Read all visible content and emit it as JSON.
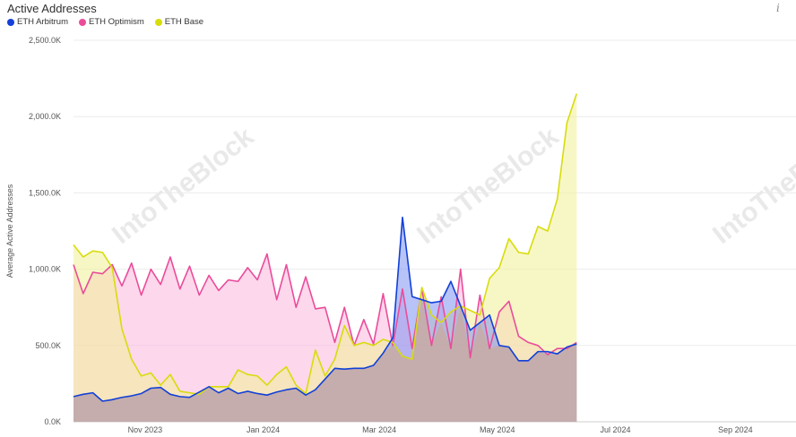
{
  "header": {
    "title": "Active Addresses",
    "info_icon": "i"
  },
  "watermark": "IntoTheBlock",
  "colors": {
    "arbitrum": "#1240d8",
    "optimism": "#ea4c9a",
    "base": "#d8dc0c",
    "arbitrum_fill": "#7e92f2",
    "optimism_fill": "#fbb6dc",
    "base_fill": "#f0f098",
    "overlap_fill": "#c9a99c",
    "grid": "#ececec"
  },
  "chart_data": {
    "type": "area",
    "title": "Active Addresses",
    "ylabel": "Average Active Addresses",
    "xlabel": "",
    "ylim": [
      0,
      2500000
    ],
    "yticks": [
      0,
      500000,
      1000000,
      1500000,
      2000000,
      2500000
    ],
    "ytick_labels": [
      "0.0K",
      "500.0K",
      "1,000.0K",
      "1,500.0K",
      "2,000.0K",
      "2,500.0K"
    ],
    "xlim": [
      "2023-09-25",
      "2024-09-24"
    ],
    "xticks": [
      {
        "date": "2023-11-01",
        "label": "Nov 2023"
      },
      {
        "date": "2024-01-01",
        "label": "Jan 2024"
      },
      {
        "date": "2024-03-01",
        "label": "Mar 2024"
      },
      {
        "date": "2024-05-01",
        "label": "May 2024"
      },
      {
        "date": "2024-07-01",
        "label": "Jul 2024"
      },
      {
        "date": "2024-09-01",
        "label": "Sep 2024"
      }
    ],
    "grid": true,
    "legend_position": "top-left",
    "series": [
      {
        "name": "ETH Arbitrum",
        "key": "arbitrum",
        "points": [
          [
            "2023-09-25",
            165000
          ],
          [
            "2023-09-30",
            180000
          ],
          [
            "2023-10-05",
            190000
          ],
          [
            "2023-10-10",
            135000
          ],
          [
            "2023-10-15",
            145000
          ],
          [
            "2023-10-20",
            160000
          ],
          [
            "2023-10-25",
            170000
          ],
          [
            "2023-10-30",
            185000
          ],
          [
            "2023-11-04",
            220000
          ],
          [
            "2023-11-09",
            225000
          ],
          [
            "2023-11-14",
            180000
          ],
          [
            "2023-11-19",
            165000
          ],
          [
            "2023-11-24",
            160000
          ],
          [
            "2023-11-29",
            195000
          ],
          [
            "2023-12-04",
            230000
          ],
          [
            "2023-12-09",
            190000
          ],
          [
            "2023-12-14",
            220000
          ],
          [
            "2023-12-19",
            185000
          ],
          [
            "2023-12-24",
            200000
          ],
          [
            "2023-12-29",
            185000
          ],
          [
            "2024-01-03",
            175000
          ],
          [
            "2024-01-08",
            195000
          ],
          [
            "2024-01-13",
            210000
          ],
          [
            "2024-01-18",
            220000
          ],
          [
            "2024-01-23",
            175000
          ],
          [
            "2024-01-28",
            210000
          ],
          [
            "2024-02-02",
            280000
          ],
          [
            "2024-02-07",
            350000
          ],
          [
            "2024-02-12",
            345000
          ],
          [
            "2024-02-17",
            350000
          ],
          [
            "2024-02-22",
            350000
          ],
          [
            "2024-02-27",
            370000
          ],
          [
            "2024-03-03",
            450000
          ],
          [
            "2024-03-08",
            550000
          ],
          [
            "2024-03-13",
            1340000
          ],
          [
            "2024-03-18",
            820000
          ],
          [
            "2024-03-23",
            800000
          ],
          [
            "2024-03-28",
            780000
          ],
          [
            "2024-04-02",
            790000
          ],
          [
            "2024-04-07",
            920000
          ],
          [
            "2024-04-12",
            760000
          ],
          [
            "2024-04-17",
            600000
          ],
          [
            "2024-04-22",
            650000
          ],
          [
            "2024-04-27",
            700000
          ],
          [
            "2024-05-02",
            500000
          ],
          [
            "2024-05-07",
            490000
          ],
          [
            "2024-05-12",
            400000
          ],
          [
            "2024-05-17",
            400000
          ],
          [
            "2024-05-22",
            460000
          ],
          [
            "2024-05-27",
            460000
          ],
          [
            "2024-06-01",
            445000
          ],
          [
            "2024-06-06",
            490000
          ],
          [
            "2024-06-11",
            510000
          ]
        ]
      },
      {
        "name": "ETH Optimism",
        "key": "optimism",
        "points": [
          [
            "2023-09-25",
            1030000
          ],
          [
            "2023-09-30",
            840000
          ],
          [
            "2023-10-05",
            980000
          ],
          [
            "2023-10-10",
            970000
          ],
          [
            "2023-10-15",
            1030000
          ],
          [
            "2023-10-20",
            890000
          ],
          [
            "2023-10-25",
            1040000
          ],
          [
            "2023-10-30",
            830000
          ],
          [
            "2023-11-04",
            1000000
          ],
          [
            "2023-11-09",
            900000
          ],
          [
            "2023-11-14",
            1080000
          ],
          [
            "2023-11-19",
            870000
          ],
          [
            "2023-11-24",
            1020000
          ],
          [
            "2023-11-29",
            830000
          ],
          [
            "2023-12-04",
            960000
          ],
          [
            "2023-12-09",
            860000
          ],
          [
            "2023-12-14",
            930000
          ],
          [
            "2023-12-19",
            920000
          ],
          [
            "2023-12-24",
            1010000
          ],
          [
            "2023-12-29",
            930000
          ],
          [
            "2024-01-03",
            1100000
          ],
          [
            "2024-01-08",
            800000
          ],
          [
            "2024-01-13",
            1030000
          ],
          [
            "2024-01-18",
            750000
          ],
          [
            "2024-01-23",
            950000
          ],
          [
            "2024-01-28",
            740000
          ],
          [
            "2024-02-02",
            750000
          ],
          [
            "2024-02-07",
            520000
          ],
          [
            "2024-02-12",
            750000
          ],
          [
            "2024-02-17",
            500000
          ],
          [
            "2024-02-22",
            670000
          ],
          [
            "2024-02-27",
            510000
          ],
          [
            "2024-03-03",
            840000
          ],
          [
            "2024-03-08",
            500000
          ],
          [
            "2024-03-13",
            870000
          ],
          [
            "2024-03-18",
            480000
          ],
          [
            "2024-03-23",
            870000
          ],
          [
            "2024-03-28",
            500000
          ],
          [
            "2024-04-02",
            820000
          ],
          [
            "2024-04-07",
            480000
          ],
          [
            "2024-04-12",
            1000000
          ],
          [
            "2024-04-17",
            420000
          ],
          [
            "2024-04-22",
            830000
          ],
          [
            "2024-04-27",
            480000
          ],
          [
            "2024-05-02",
            720000
          ],
          [
            "2024-05-07",
            790000
          ],
          [
            "2024-05-12",
            560000
          ],
          [
            "2024-05-17",
            520000
          ],
          [
            "2024-05-22",
            500000
          ],
          [
            "2024-05-27",
            440000
          ],
          [
            "2024-06-01",
            480000
          ],
          [
            "2024-06-06",
            480000
          ],
          [
            "2024-06-11",
            520000
          ]
        ]
      },
      {
        "name": "ETH Base",
        "key": "base",
        "points": [
          [
            "2023-09-25",
            1160000
          ],
          [
            "2023-09-30",
            1080000
          ],
          [
            "2023-10-05",
            1120000
          ],
          [
            "2023-10-10",
            1110000
          ],
          [
            "2023-10-15",
            1010000
          ],
          [
            "2023-10-20",
            610000
          ],
          [
            "2023-10-25",
            410000
          ],
          [
            "2023-10-30",
            300000
          ],
          [
            "2023-11-04",
            320000
          ],
          [
            "2023-11-09",
            240000
          ],
          [
            "2023-11-14",
            310000
          ],
          [
            "2023-11-19",
            200000
          ],
          [
            "2023-11-24",
            190000
          ],
          [
            "2023-11-29",
            180000
          ],
          [
            "2023-12-04",
            230000
          ],
          [
            "2023-12-09",
            230000
          ],
          [
            "2023-12-14",
            230000
          ],
          [
            "2023-12-19",
            340000
          ],
          [
            "2023-12-24",
            310000
          ],
          [
            "2023-12-29",
            300000
          ],
          [
            "2024-01-03",
            240000
          ],
          [
            "2024-01-08",
            310000
          ],
          [
            "2024-01-13",
            360000
          ],
          [
            "2024-01-18",
            240000
          ],
          [
            "2024-01-23",
            185000
          ],
          [
            "2024-01-28",
            470000
          ],
          [
            "2024-02-02",
            300000
          ],
          [
            "2024-02-07",
            410000
          ],
          [
            "2024-02-12",
            630000
          ],
          [
            "2024-02-17",
            500000
          ],
          [
            "2024-02-22",
            520000
          ],
          [
            "2024-02-27",
            500000
          ],
          [
            "2024-03-03",
            540000
          ],
          [
            "2024-03-08",
            520000
          ],
          [
            "2024-03-13",
            430000
          ],
          [
            "2024-03-18",
            410000
          ],
          [
            "2024-03-23",
            880000
          ],
          [
            "2024-03-28",
            700000
          ],
          [
            "2024-04-02",
            650000
          ],
          [
            "2024-04-07",
            720000
          ],
          [
            "2024-04-12",
            760000
          ],
          [
            "2024-04-17",
            730000
          ],
          [
            "2024-04-22",
            700000
          ],
          [
            "2024-04-27",
            940000
          ],
          [
            "2024-05-02",
            1010000
          ],
          [
            "2024-05-07",
            1200000
          ],
          [
            "2024-05-12",
            1110000
          ],
          [
            "2024-05-17",
            1100000
          ],
          [
            "2024-05-22",
            1280000
          ],
          [
            "2024-05-27",
            1250000
          ],
          [
            "2024-06-01",
            1460000
          ],
          [
            "2024-06-06",
            1960000
          ],
          [
            "2024-06-11",
            2150000
          ]
        ]
      }
    ]
  }
}
